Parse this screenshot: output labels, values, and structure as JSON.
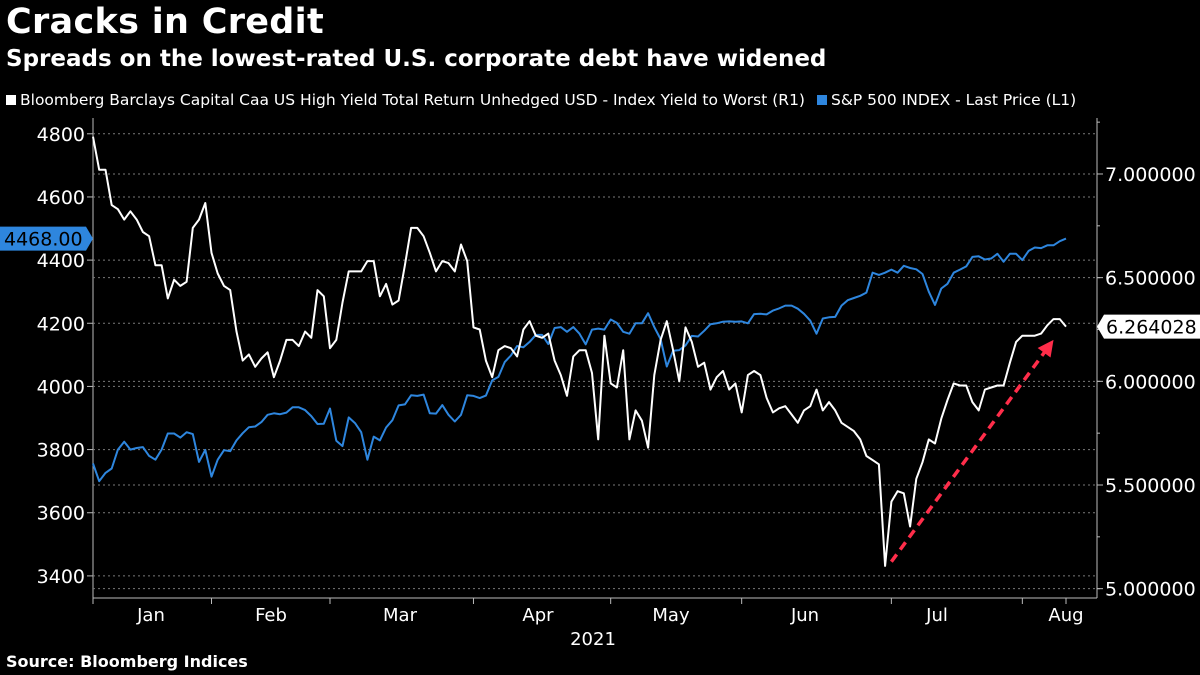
{
  "chart_data": {
    "type": "line",
    "title": "Cracks in Credit",
    "subtitle": "Spreads on the lowest-rated U.S. corporate debt have widened",
    "source": "Source: Bloomberg Indices",
    "xlabel": "2021",
    "x_ticks": [
      "Jan",
      "Feb",
      "Mar",
      "Apr",
      "May",
      "Jun",
      "Jul",
      "Aug"
    ],
    "left_axis": {
      "ticks": [
        "3400",
        "3600",
        "3800",
        "4000",
        "4200",
        "4400",
        "4600",
        "4800"
      ],
      "range": [
        3330,
        4850
      ]
    },
    "right_axis": {
      "ticks": [
        "5.000000",
        "5.500000",
        "6.000000",
        "6.500000",
        "7.000000"
      ],
      "range": [
        4.955,
        7.27
      ]
    },
    "colors": {
      "yield": "#ffffff",
      "sp500": "#2e86de",
      "arrow": "#ff2d4a",
      "grid": "#7a7a7a"
    },
    "series": [
      {
        "name": "Bloomberg Barclays Capital Caa US High Yield Total Return Unhedged USD - Index Yield to Worst (R1)",
        "axis": "right",
        "last_label": "6.264028",
        "values": [
          7.18,
          7.02,
          7.02,
          6.85,
          6.83,
          6.78,
          6.82,
          6.78,
          6.72,
          6.7,
          6.56,
          6.56,
          6.4,
          6.49,
          6.46,
          6.48,
          6.74,
          6.78,
          6.86,
          6.62,
          6.52,
          6.46,
          6.44,
          6.24,
          6.1,
          6.13,
          6.07,
          6.11,
          6.14,
          6.02,
          6.1,
          6.2,
          6.2,
          6.17,
          6.24,
          6.21,
          6.44,
          6.41,
          6.16,
          6.2,
          6.38,
          6.53,
          6.53,
          6.53,
          6.58,
          6.58,
          6.41,
          6.47,
          6.37,
          6.39,
          6.56,
          6.74,
          6.74,
          6.7,
          6.62,
          6.53,
          6.58,
          6.57,
          6.53,
          6.66,
          6.58,
          6.26,
          6.25,
          6.1,
          6.02,
          6.15,
          6.17,
          6.16,
          6.12,
          6.25,
          6.29,
          6.22,
          6.21,
          6.23,
          6.1,
          6.03,
          5.93,
          6.12,
          6.15,
          6.15,
          6.04,
          5.72,
          6.22,
          5.99,
          5.97,
          6.15,
          5.72,
          5.86,
          5.81,
          5.68,
          6.03,
          6.2,
          6.29,
          6.15,
          6.0,
          6.26,
          6.19,
          6.07,
          6.09,
          5.96,
          6.02,
          6.05,
          5.96,
          5.99,
          5.85,
          6.03,
          6.05,
          6.03,
          5.92,
          5.85,
          5.87,
          5.88,
          5.84,
          5.8,
          5.86,
          5.88,
          5.96,
          5.86,
          5.9,
          5.86,
          5.8,
          5.78,
          5.76,
          5.72,
          5.64,
          5.62,
          5.6,
          5.11,
          5.42,
          5.47,
          5.46,
          5.3,
          5.53,
          5.61,
          5.72,
          5.7,
          5.82,
          5.91,
          5.99,
          5.98,
          5.98,
          5.9,
          5.86,
          5.96,
          5.97,
          5.98,
          5.98,
          6.09,
          6.19,
          6.22,
          6.22,
          6.22,
          6.23,
          6.27,
          6.3,
          6.3,
          6.264
        ]
      },
      {
        "name": "S&P 500 INDEX - Last Price (L1)",
        "axis": "left",
        "last_label": "4468.00",
        "values": [
          3756,
          3700,
          3726,
          3740,
          3800,
          3825,
          3800,
          3805,
          3808,
          3780,
          3768,
          3800,
          3851,
          3851,
          3838,
          3855,
          3849,
          3761,
          3799,
          3714,
          3768,
          3798,
          3795,
          3829,
          3852,
          3871,
          3873,
          3887,
          3910,
          3915,
          3912,
          3917,
          3934,
          3934,
          3925,
          3906,
          3881,
          3882,
          3930,
          3828,
          3811,
          3902,
          3884,
          3855,
          3768,
          3841,
          3829,
          3870,
          3893,
          3940,
          3943,
          3972,
          3970,
          3974,
          3915,
          3914,
          3941,
          3910,
          3889,
          3910,
          3972,
          3970,
          3963,
          3971,
          4019,
          4030,
          4077,
          4098,
          4128,
          4124,
          4141,
          4163,
          4163,
          4134,
          4185,
          4188,
          4173,
          4188,
          4167,
          4133,
          4180,
          4183,
          4180,
          4212,
          4201,
          4173,
          4167,
          4200,
          4200,
          4232,
          4188,
          4150,
          4063,
          4113,
          4115,
          4130,
          4160,
          4158,
          4176,
          4197,
          4200,
          4205,
          4206,
          4205,
          4206,
          4200,
          4229,
          4230,
          4228,
          4240,
          4247,
          4256,
          4256,
          4246,
          4230,
          4208,
          4167,
          4215,
          4219,
          4220,
          4256,
          4273,
          4280,
          4287,
          4297,
          4360,
          4353,
          4360,
          4370,
          4360,
          4382,
          4375,
          4371,
          4356,
          4300,
          4258,
          4310,
          4325,
          4360,
          4370,
          4380,
          4410,
          4412,
          4402,
          4405,
          4420,
          4395,
          4420,
          4420,
          4400,
          4429,
          4440,
          4438,
          4447,
          4447,
          4460,
          4468
        ]
      }
    ],
    "annotations": [
      {
        "type": "dashed-arrow",
        "from": {
          "index": 128,
          "value": 5.13
        },
        "to": {
          "index": 154,
          "value": 6.2
        }
      }
    ]
  }
}
